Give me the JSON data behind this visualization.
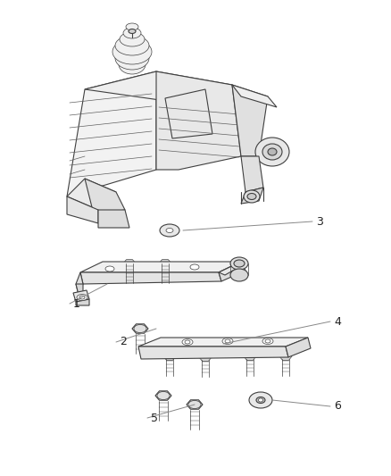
{
  "background_color": "#ffffff",
  "line_color": "#404040",
  "thin_color": "#606060",
  "fig_width": 4.38,
  "fig_height": 5.33,
  "dpi": 100
}
